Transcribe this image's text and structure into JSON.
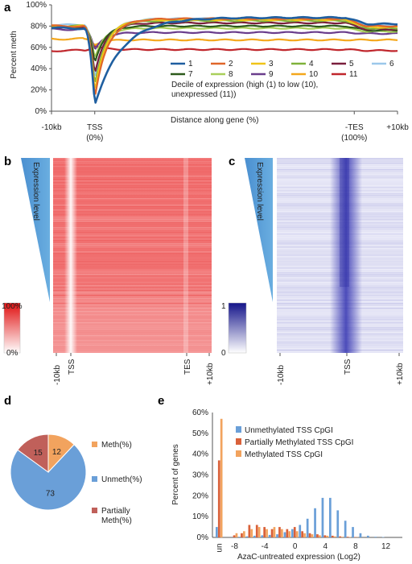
{
  "panel_labels": {
    "a": "a",
    "b": "b",
    "c": "c",
    "d": "d",
    "e": "e"
  },
  "chart_data": [
    {
      "id": "a",
      "type": "line",
      "ylabel": "Percent meth",
      "xlabel": "Distance along gene (%)",
      "ylim": [
        0,
        100
      ],
      "yticks": [
        "0%",
        "20%",
        "40%",
        "60%",
        "80%",
        "100%"
      ],
      "xticks": [
        {
          "l1": "-10kb",
          "l2": ""
        },
        {
          "l1": "TSS",
          "l2": "(0%)"
        },
        {
          "l1": "-TES",
          "l2": "(100%)"
        },
        {
          "l1": "+10kb",
          "l2": ""
        }
      ],
      "legend_caption": [
        "Decile of expression (high (1) to low (10),",
        "unexpressed (11))"
      ],
      "series": [
        {
          "name": "1",
          "color": "#1f5fa0",
          "pre": 78,
          "min": 6,
          "plateau": 88,
          "rec": 17,
          "post": 82
        },
        {
          "name": "2",
          "color": "#e0662a",
          "pre": 80,
          "min": 12,
          "plateau": 87,
          "rec": 8,
          "post": 80
        },
        {
          "name": "3",
          "color": "#f0c418",
          "pre": 80,
          "min": 17,
          "plateau": 86,
          "rec": 7,
          "post": 79
        },
        {
          "name": "4",
          "color": "#7fb13a",
          "pre": 80,
          "min": 24,
          "plateau": 85,
          "rec": 7,
          "post": 78
        },
        {
          "name": "5",
          "color": "#7a1f3d",
          "pre": 79,
          "min": 35,
          "plateau": 83,
          "rec": 7,
          "post": 77
        },
        {
          "name": "6",
          "color": "#9cc8ea",
          "pre": 81,
          "min": 30,
          "plateau": 87,
          "rec": 8,
          "post": 81
        },
        {
          "name": "7",
          "color": "#2d5a1c",
          "pre": 79,
          "min": 45,
          "plateau": 80,
          "rec": 6,
          "post": 76
        },
        {
          "name": "8",
          "color": "#a9cf5a",
          "pre": 79,
          "min": 50,
          "plateau": 78,
          "rec": 6,
          "post": 75
        },
        {
          "name": "9",
          "color": "#6a3d8c",
          "pre": 77,
          "min": 57,
          "plateau": 74,
          "rec": 6,
          "post": 73
        },
        {
          "name": "10",
          "color": "#f4a71c",
          "pre": 68,
          "min": 62,
          "plateau": 67,
          "rec": 5,
          "post": 67
        },
        {
          "name": "11",
          "color": "#c0262c",
          "pre": 57,
          "min": 62,
          "plateau": 58,
          "rec": 5,
          "post": 57
        }
      ]
    },
    {
      "id": "b",
      "type": "heatmap",
      "side_label": "Expression level",
      "scale_labels": [
        "100%",
        "0%"
      ],
      "xticks": [
        "-10kb",
        "TSS",
        "TES",
        "+10kb"
      ],
      "color": "#e84040"
    },
    {
      "id": "c",
      "type": "heatmap",
      "side_label": "Expression level",
      "scale_labels": [
        "1",
        "0"
      ],
      "xticks": [
        "-10kb",
        "TSS",
        "+10kb"
      ],
      "color": "#2e2ea8"
    },
    {
      "id": "d",
      "type": "pie",
      "slices": [
        {
          "name": "Meth(%)",
          "value": 12,
          "color": "#f2a35e"
        },
        {
          "name": "Unmeth(%)",
          "value": 73,
          "color": "#6a9fd8"
        },
        {
          "name": "Partially Meth(%)",
          "value": 15,
          "color": "#c0605a"
        }
      ],
      "legend": [
        {
          "lines": [
            "Meth(%)"
          ]
        },
        {
          "lines": [
            "Unmeth(%)"
          ]
        },
        {
          "lines": [
            "Partially",
            "Meth(%)"
          ]
        }
      ]
    },
    {
      "id": "e",
      "type": "bar",
      "ylabel": "Percent of genes",
      "xlabel": "AzaC-untreated expression (Log2)",
      "ylim": [
        0,
        60
      ],
      "yticks": [
        "0%",
        "10%",
        "20%",
        "30%",
        "40%",
        "50%",
        "60%"
      ],
      "xticks": [
        "un",
        "-8",
        "-4",
        "0",
        "4",
        "8",
        "12"
      ],
      "categories": [
        "un",
        "-9",
        "-8",
        "-7",
        "-6",
        "-5",
        "-4",
        "-3",
        "-2",
        "-1",
        "0",
        "1",
        "2",
        "3",
        "4",
        "5",
        "6",
        "7",
        "8",
        "9",
        "10",
        "11",
        "12"
      ],
      "series": [
        {
          "name": "Unmethylated TSS CpGI",
          "color": "#6a9fd8",
          "values": [
            5,
            0,
            0,
            0.3,
            0.5,
            0.8,
            1,
            1.2,
            1.5,
            2.5,
            4,
            6,
            9,
            14,
            19,
            19,
            13,
            8,
            5,
            2,
            0.8,
            0.3,
            0.2
          ]
        },
        {
          "name": "Partially Methylated TSS CpGI",
          "color": "#d9613a",
          "values": [
            37,
            0,
            1,
            2,
            6,
            6,
            5,
            4,
            5,
            4,
            5,
            3,
            2,
            1.5,
            1,
            0.8,
            0.5,
            0.3,
            0.2,
            0,
            0,
            0,
            0
          ]
        },
        {
          "name": "Methylated TSS CpGI",
          "color": "#f2a35e",
          "values": [
            57,
            0,
            2,
            3,
            4,
            5,
            4,
            5,
            4,
            3,
            3,
            2,
            1.5,
            1,
            0.8,
            0.5,
            0.3,
            0.2,
            0.1,
            0,
            0,
            0,
            0
          ]
        }
      ]
    }
  ]
}
